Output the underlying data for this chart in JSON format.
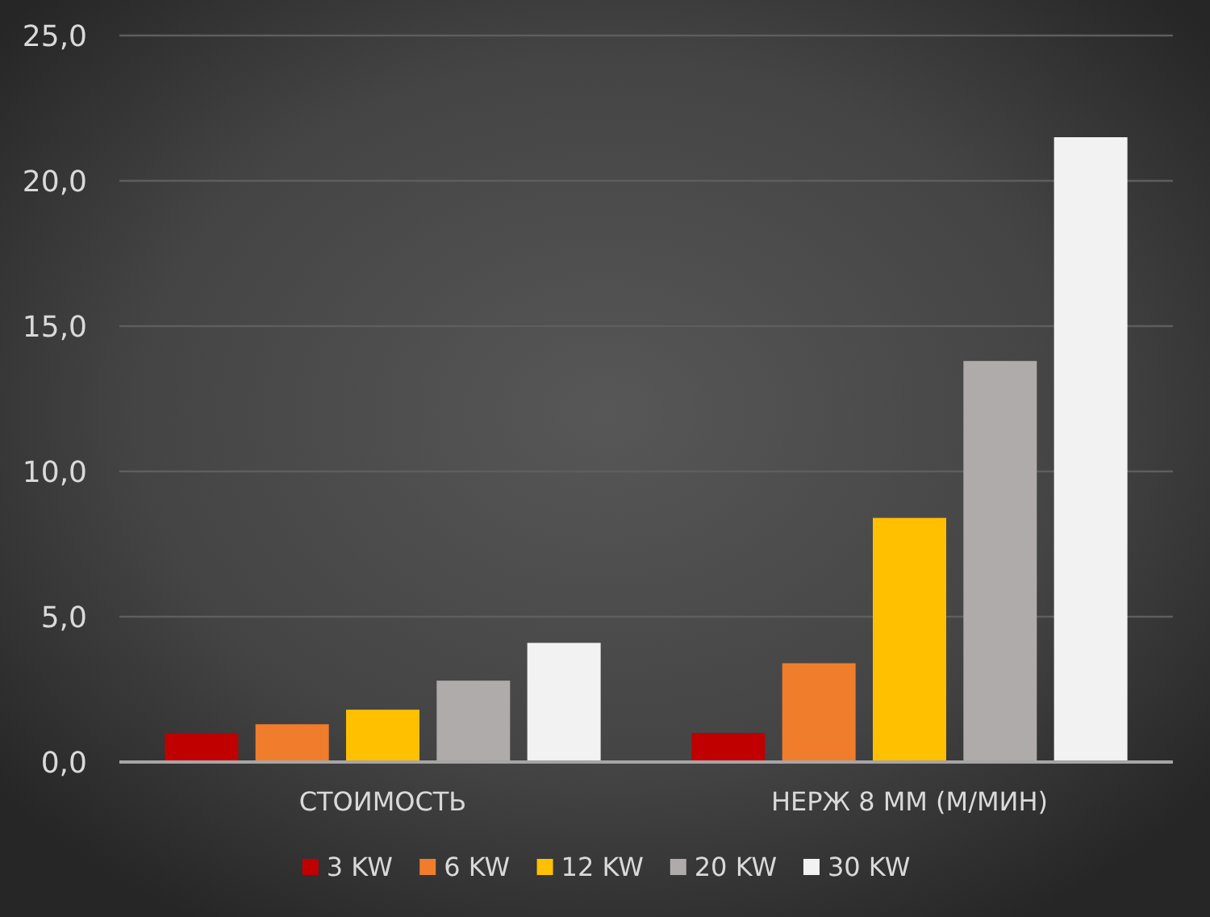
{
  "chart_data": {
    "type": "bar",
    "categories": [
      "СТОИМОСТЬ",
      "НЕРЖ 8 ММ (М/МИН)"
    ],
    "series": [
      {
        "name": "3 KW",
        "color": "#c00000",
        "values": [
          1.0,
          1.0
        ]
      },
      {
        "name": "6 KW",
        "color": "#ef7d2c",
        "values": [
          1.3,
          3.4
        ]
      },
      {
        "name": "12 KW",
        "color": "#ffc000",
        "values": [
          1.8,
          8.4
        ]
      },
      {
        "name": "20 KW",
        "color": "#afabab",
        "values": [
          2.8,
          13.8
        ]
      },
      {
        "name": "30 KW",
        "color": "#f2f2f2",
        "values": [
          4.1,
          21.5
        ]
      }
    ],
    "ylim": [
      0,
      25
    ],
    "yticks": [
      {
        "value": 0,
        "label": "0,0"
      },
      {
        "value": 5,
        "label": "5,0"
      },
      {
        "value": 10,
        "label": "10,0"
      },
      {
        "value": 15,
        "label": "15,0"
      },
      {
        "value": 20,
        "label": "20,0"
      },
      {
        "value": 25,
        "label": "25,0"
      }
    ],
    "grid": "y",
    "legend": "bottom"
  }
}
